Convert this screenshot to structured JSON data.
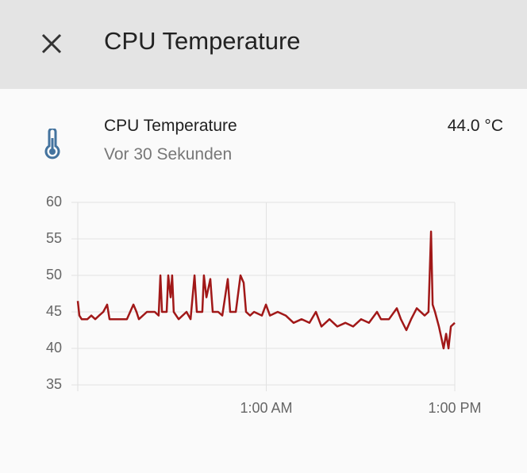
{
  "header": {
    "title": "CPU Temperature"
  },
  "entity": {
    "name": "CPU Temperature",
    "last_changed": "Vor 30 Sekunden",
    "state": "44.0 °C"
  },
  "chart_data": {
    "type": "line",
    "color": "#a11818",
    "x": [
      0,
      0.1,
      0.25,
      0.61,
      0.86,
      1.11,
      1.36,
      1.62,
      1.87,
      2.02,
      2.63,
      3.13,
      3.54,
      3.74,
      3.89,
      4.4,
      4.9,
      5.15,
      5.26,
      5.36,
      5.66,
      5.76,
      5.91,
      6.01,
      6.11,
      6.42,
      6.92,
      7.18,
      7.43,
      7.58,
      7.93,
      8.03,
      8.19,
      8.44,
      8.59,
      8.94,
      9.2,
      9.55,
      9.7,
      10.06,
      10.36,
      10.56,
      10.71,
      10.97,
      11.22,
      11.72,
      11.98,
      12.23,
      12.73,
      13.24,
      13.74,
      14.25,
      14.75,
      15.16,
      15.51,
      16.02,
      16.52,
      17.03,
      17.53,
      18.04,
      18.54,
      19.05,
      19.3,
      19.81,
      20.31,
      20.57,
      20.92,
      21.22,
      21.58,
      22.08,
      22.33,
      22.49,
      22.59,
      22.74,
      22.99,
      23.14,
      23.29,
      23.45,
      23.6,
      23.75,
      24
    ],
    "values": [
      46.5,
      44.5,
      44,
      44,
      44.5,
      44,
      44.5,
      45,
      46,
      44,
      44,
      44,
      46,
      45,
      44,
      45,
      45,
      44.5,
      50,
      45,
      45,
      50,
      47,
      50,
      45,
      44,
      45,
      44,
      50,
      45,
      45,
      50,
      47,
      49.5,
      45,
      45,
      44.5,
      49.5,
      45,
      45,
      50,
      49,
      45,
      44.5,
      45,
      44.5,
      46,
      44.5,
      45,
      44.5,
      43.5,
      44,
      43.5,
      45,
      43,
      44,
      43,
      43.5,
      43,
      44,
      43.5,
      45,
      44,
      44,
      45.5,
      44,
      42.5,
      44,
      45.5,
      44.5,
      45,
      56,
      46,
      45,
      43,
      41.5,
      40,
      42,
      40,
      43,
      43.5
    ],
    "xlim": [
      0,
      24
    ],
    "xticks": [
      {
        "value": 12,
        "label": "1:00 AM"
      },
      {
        "value": 24,
        "label": "1:00 PM"
      }
    ],
    "ylim": [
      35,
      60
    ],
    "yticks": [
      35,
      40,
      45,
      50,
      55,
      60
    ],
    "grid": true
  }
}
